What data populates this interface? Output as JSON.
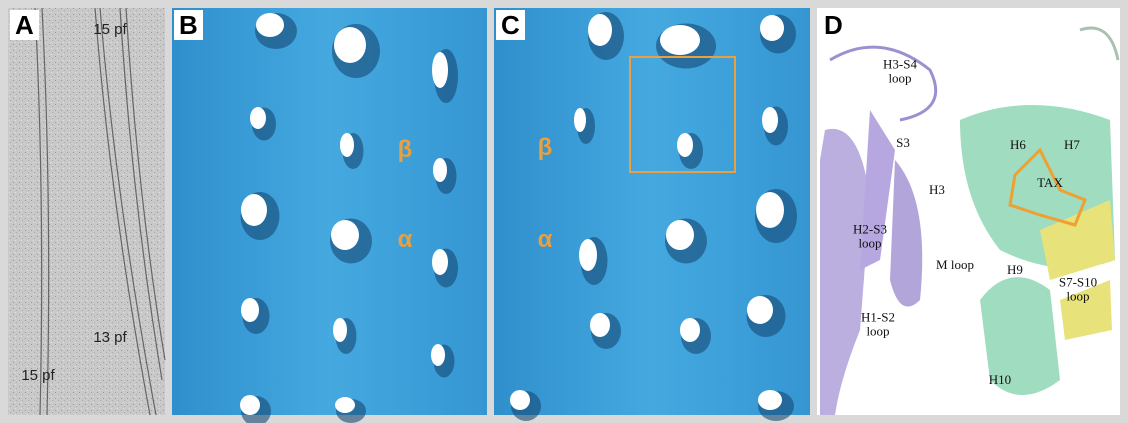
{
  "panels": [
    {
      "letter": "A",
      "labels": [
        "15 pf",
        "13 pf",
        "15 pf"
      ]
    },
    {
      "letter": "B",
      "labels": [
        "β",
        "α"
      ]
    },
    {
      "letter": "C",
      "labels": [
        "β",
        "α"
      ]
    },
    {
      "letter": "D",
      "labels": [
        "H3-S4 loop",
        "S3",
        "H3",
        "H2-S3 loop",
        "H1-S2 loop",
        "H6",
        "H7",
        "TAX",
        "M loop",
        "H9",
        "S7-S10 loop",
        "H10"
      ]
    }
  ]
}
